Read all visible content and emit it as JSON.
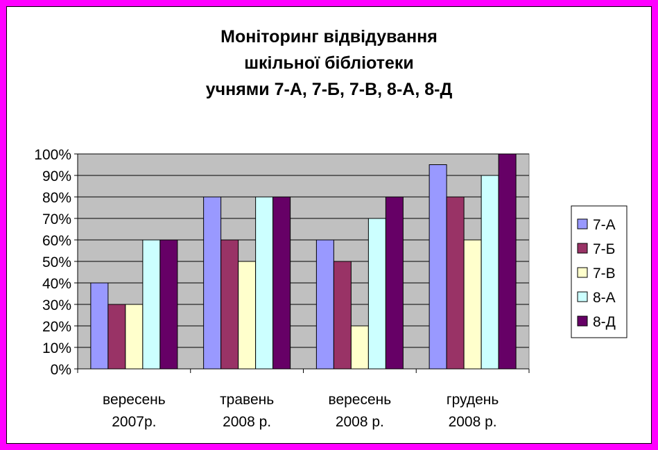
{
  "chart_data": {
    "type": "bar",
    "title_lines": [
      "Моніторинг відвідування",
      "шкільної бібліотеки",
      "учнями 7-А, 7-Б, 7-В, 8-А, 8-Д"
    ],
    "categories": [
      [
        "вересень",
        "2007р."
      ],
      [
        "травень",
        "2008 р."
      ],
      [
        "вересень",
        "2008 р."
      ],
      [
        "грудень",
        "2008 р."
      ]
    ],
    "series": [
      {
        "name": "7-А",
        "color": "#9999ff",
        "values": [
          40,
          80,
          60,
          95
        ]
      },
      {
        "name": "7-Б",
        "color": "#993366",
        "values": [
          30,
          60,
          50,
          80
        ]
      },
      {
        "name": "7-В",
        "color": "#ffffcc",
        "values": [
          30,
          50,
          20,
          60
        ]
      },
      {
        "name": "8-А",
        "color": "#ccffff",
        "values": [
          60,
          80,
          70,
          90
        ]
      },
      {
        "name": "8-Д",
        "color": "#660066",
        "values": [
          60,
          80,
          80,
          100
        ]
      }
    ],
    "ylim": [
      0,
      100
    ],
    "yticks": [
      0,
      10,
      20,
      30,
      40,
      50,
      60,
      70,
      80,
      90,
      100
    ],
    "ytick_suffix": "%",
    "grid": true,
    "plot_background": "#c0c0c0",
    "frame_color": "#ff00ff",
    "legend_position": "right"
  }
}
